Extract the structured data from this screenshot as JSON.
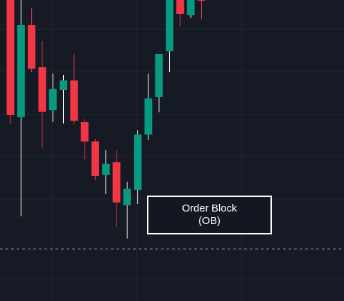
{
  "chart_data": {
    "type": "candlestick",
    "title": "",
    "xlabel": "",
    "ylabel": "",
    "ylim": [
      0,
      434
    ],
    "grid": true,
    "colors": {
      "up": "#089981",
      "down": "#f23645",
      "background": "#161a25",
      "grid": "#232733",
      "wick": "#ffffff",
      "reference_line": "#8a8f9c"
    },
    "reference_line": {
      "style": "dashed",
      "value": 75
    },
    "candles": [
      {
        "index": 0,
        "open": 434,
        "close": 268,
        "high": 434,
        "low": 255,
        "direction": "down"
      },
      {
        "index": 1,
        "open": 265,
        "close": 398,
        "high": 434,
        "low": 122,
        "direction": "up"
      },
      {
        "index": 2,
        "open": 398,
        "close": 335,
        "high": 422,
        "low": 330,
        "direction": "down"
      },
      {
        "index": 3,
        "open": 337,
        "close": 273,
        "high": 375,
        "low": 220,
        "direction": "down"
      },
      {
        "index": 4,
        "open": 275,
        "close": 306,
        "high": 328,
        "low": 258,
        "direction": "up"
      },
      {
        "index": 5,
        "open": 304,
        "close": 318,
        "high": 326,
        "low": 256,
        "direction": "up"
      },
      {
        "index": 6,
        "open": 318,
        "close": 260,
        "high": 356,
        "low": 255,
        "direction": "down"
      },
      {
        "index": 7,
        "open": 258,
        "close": 230,
        "high": 262,
        "low": 204,
        "direction": "down"
      },
      {
        "index": 8,
        "open": 230,
        "close": 180,
        "high": 234,
        "low": 175,
        "direction": "down"
      },
      {
        "index": 9,
        "open": 182,
        "close": 198,
        "high": 218,
        "low": 154,
        "direction": "up"
      },
      {
        "index": 10,
        "open": 200,
        "close": 142,
        "high": 218,
        "low": 107,
        "direction": "down"
      },
      {
        "index": 11,
        "open": 138,
        "close": 162,
        "high": 172,
        "low": 90,
        "direction": "up"
      },
      {
        "index": 12,
        "open": 160,
        "close": 240,
        "high": 246,
        "low": 140,
        "direction": "up"
      },
      {
        "index": 13,
        "open": 240,
        "close": 292,
        "high": 328,
        "low": 232,
        "direction": "up"
      },
      {
        "index": 14,
        "open": 294,
        "close": 356,
        "high": 356,
        "low": 272,
        "direction": "up"
      },
      {
        "index": 15,
        "open": 360,
        "close": 434,
        "high": 434,
        "low": 330,
        "direction": "up"
      },
      {
        "index": 16,
        "open": 434,
        "close": 414,
        "high": 434,
        "low": 396,
        "direction": "down"
      },
      {
        "index": 17,
        "open": 412,
        "close": 434,
        "high": 434,
        "low": 408,
        "direction": "up"
      },
      {
        "index": 18,
        "open": 434,
        "close": 434,
        "high": 434,
        "low": 406,
        "direction": "down"
      }
    ],
    "annotation": {
      "line1": "Order Block",
      "line2": "(OB)"
    }
  }
}
